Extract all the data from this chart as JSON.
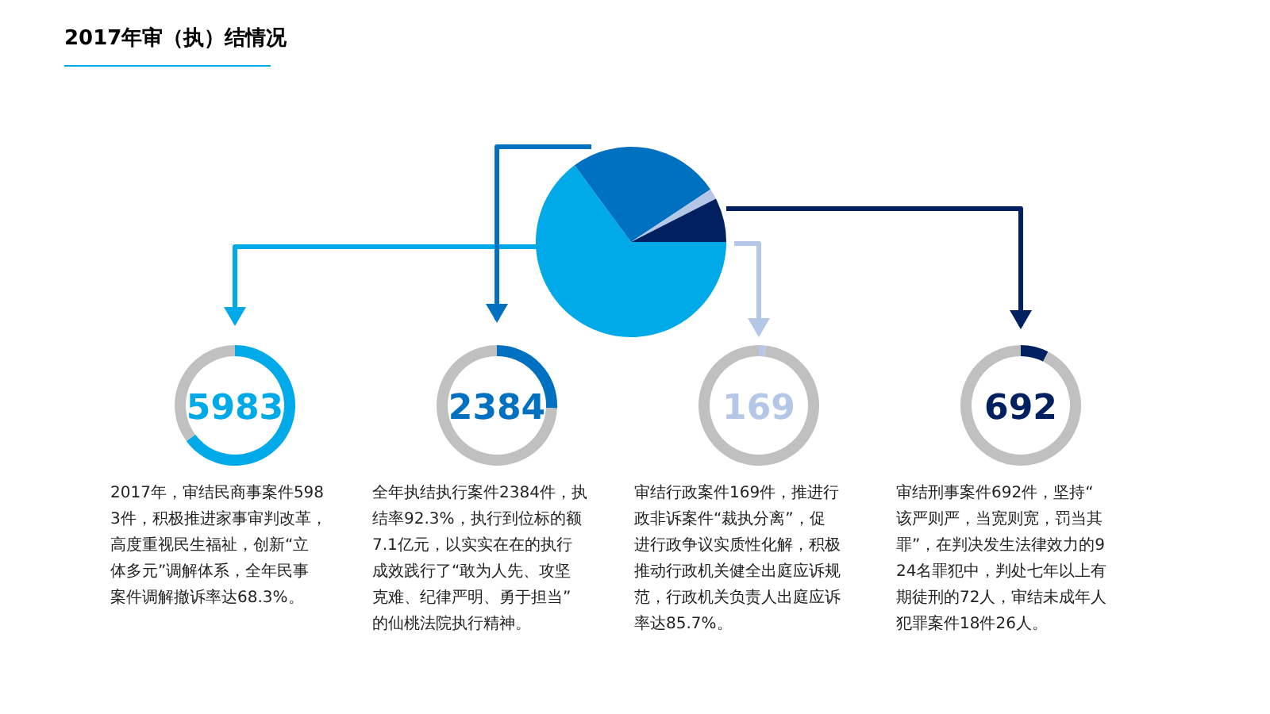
{
  "chart_data": [
    {
      "type": "pie",
      "title": "2017年审（执）结情况",
      "categories": [
        null,
        null,
        null,
        null
      ],
      "values": [
        64.9,
        25.8,
        1.8,
        7.5
      ],
      "colors": [
        "#00a9e8",
        "#0070c0",
        "#b4c7e7",
        "#002060"
      ]
    },
    {
      "type": "donut",
      "title": "5983",
      "categories": [
        null,
        null
      ],
      "values": [
        64.9,
        35.1
      ],
      "colors": [
        "#00a9e8",
        "#c0c0c0"
      ],
      "annotations": [
        "2017年，审结民商事案件5983件，积极推进家事审判改革，高度重视民生福祉，创新“立体多元”调解体系，全年民事案件调解撤诉率达68.3%。"
      ]
    },
    {
      "type": "donut",
      "title": "2384",
      "categories": [
        null,
        null
      ],
      "values": [
        25.8,
        74.2
      ],
      "colors": [
        "#0070c0",
        "#c0c0c0"
      ],
      "annotations": [
        "全年执结执行案件2384件，执结率92.3%，执行到位标的额7.1亿元，以实实在在的执行成效践行了“敢为人先、攻坚克难、纪律严明、勇于担当”的仙桃法院执行精神。"
      ]
    },
    {
      "type": "donut",
      "title": "169",
      "categories": [
        null,
        null
      ],
      "values": [
        1.8,
        98.2
      ],
      "colors": [
        "#b4c7e7",
        "#c0c0c0"
      ],
      "annotations": [
        "审结行政案件169件，推进行政非诉案件“裁执分离”，促进行政争议实质性化解，积极推动行政机关健全出庭应诉规范，行政机关负责人出庭应诉率达85.7%。"
      ]
    },
    {
      "type": "donut",
      "title": "692",
      "categories": [
        null,
        null
      ],
      "values": [
        7.5,
        92.5
      ],
      "colors": [
        "#002060",
        "#c0c0c0"
      ],
      "annotations": [
        "审结刑事案件692件，坚持“该严则严，当宽则宽，罚当其罪”，在判决发生法律效力的924名罪犯中，判处七年以上有期徒刑的72人，审结未成年人犯罪案件18件26人。"
      ]
    }
  ]
}
